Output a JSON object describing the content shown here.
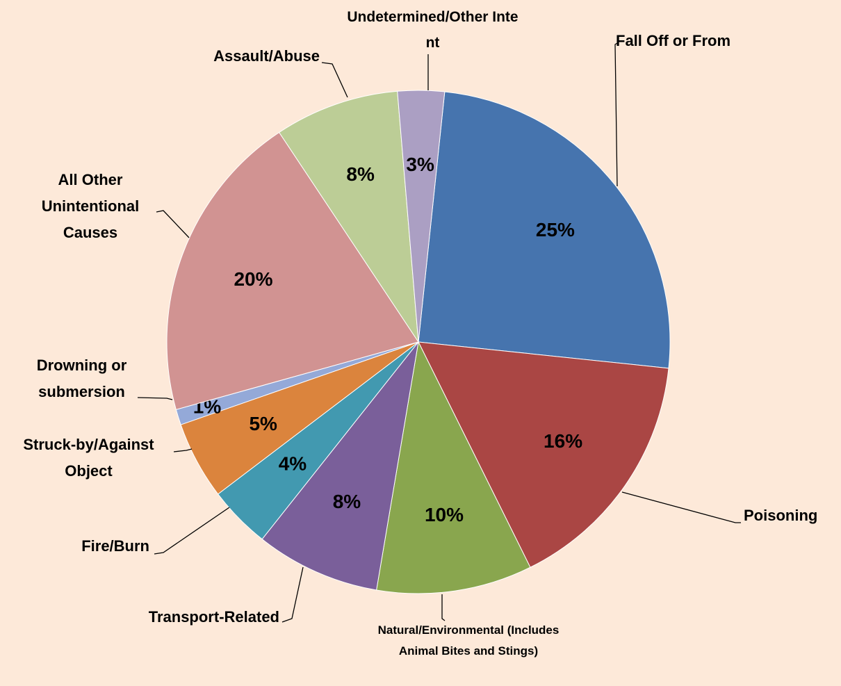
{
  "chart_data": {
    "type": "pie",
    "categories": [
      "Fall Off or From",
      "Poisoning",
      "Natural/Environmental (Includes Animal Bites and Stings)",
      "Transport-Related",
      "Fire/Burn",
      "Struck-by/Against Object",
      "Drowning or submersion",
      "All Other Unintentional Causes",
      "Assault/Abuse",
      "Undetermined/Other Intent"
    ],
    "values": [
      25,
      16,
      10,
      8,
      4,
      5,
      1,
      20,
      8,
      3
    ],
    "value_labels": [
      "25%",
      "16%",
      "10%",
      "8%",
      "4%",
      "5%",
      "1%",
      "20%",
      "8%",
      "3%"
    ],
    "colors": [
      "#4674ae",
      "#aa4644",
      "#89a64e",
      "#7a5f9a",
      "#4299b0",
      "#db843d",
      "#94a9d8",
      "#d19392",
      "#bccd96",
      "#ab9fc3"
    ]
  }
}
